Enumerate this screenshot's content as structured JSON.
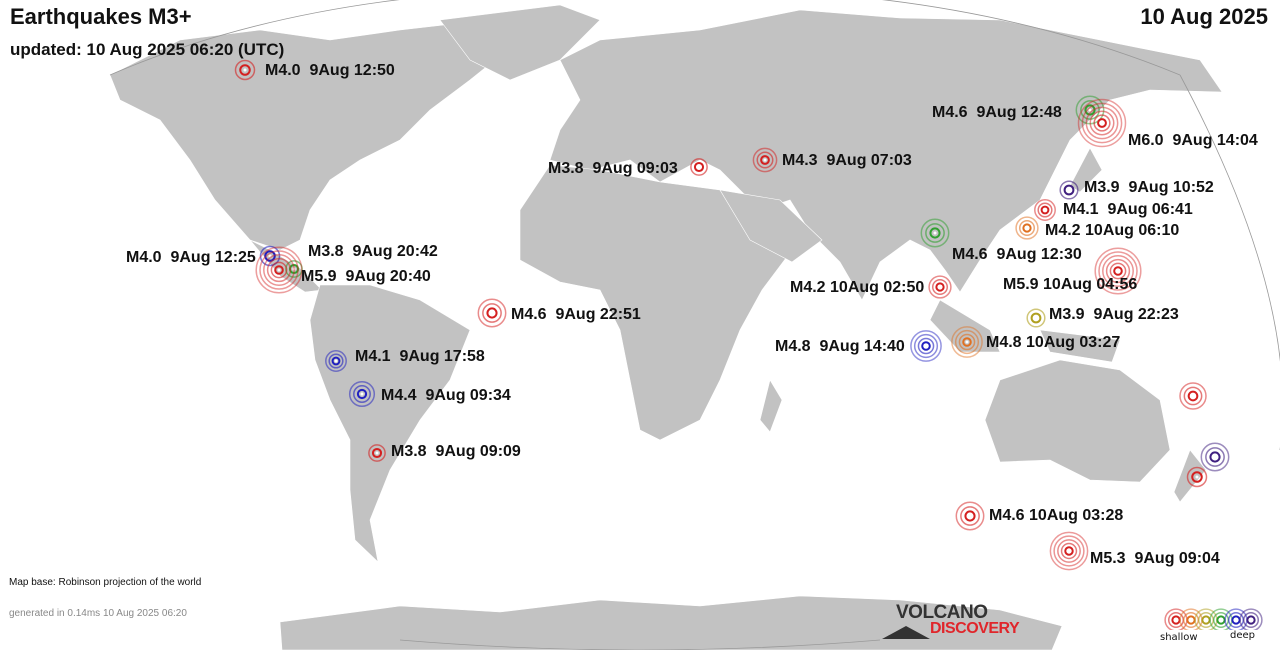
{
  "header": {
    "title": "Earthquakes M3+",
    "updated": "updated: 10 Aug 2025 06:20 (UTC)",
    "date": "10 Aug 2025"
  },
  "footer": {
    "map_base": "Map base: Robinson projection of the world",
    "generated": "generated in 0.14ms 10 Aug 2025 06:20"
  },
  "logo": {
    "line1": "VOLCANO",
    "line2": "DISCOVERY"
  },
  "legend": {
    "shallow_label": "shallow",
    "deep_label": "deep",
    "depth_colors": [
      "#d42020",
      "#e07020",
      "#b0a020",
      "#30a030",
      "#2020c0",
      "#402080"
    ]
  },
  "colors": {
    "land": "#c2c2c2",
    "ocean": "#ffffff",
    "graticule": "#999999"
  },
  "quakes": [
    {
      "label": "M4.0  9Aug 12:50",
      "magnitude": 4.0,
      "depth_color": "#d42020"
    },
    {
      "label": "M4.6  9Aug 12:48",
      "magnitude": 4.6,
      "depth_color": "#30a030"
    },
    {
      "label": "M6.0  9Aug 14:04",
      "magnitude": 6.0,
      "depth_color": "#d42020"
    },
    {
      "label": "M3.8  9Aug 09:03",
      "magnitude": 3.8,
      "depth_color": "#d42020"
    },
    {
      "label": "M4.3  9Aug 07:03",
      "magnitude": 4.3,
      "depth_color": "#d42020"
    },
    {
      "label": "M3.9  9Aug 10:52",
      "magnitude": 3.9,
      "depth_color": "#402080"
    },
    {
      "label": "M4.1  9Aug 06:41",
      "magnitude": 4.1,
      "depth_color": "#d42020"
    },
    {
      "label": "M4.2 10Aug 06:10",
      "magnitude": 4.2,
      "depth_color": "#e07020"
    },
    {
      "label": "M4.6  9Aug 12:30",
      "magnitude": 4.6,
      "depth_color": "#30a030"
    },
    {
      "label": "M4.0  9Aug 12:25",
      "magnitude": 4.0,
      "depth_color": "#2020c0"
    },
    {
      "label": "M3.8  9Aug 20:42",
      "magnitude": 3.8,
      "depth_color": "#30a030"
    },
    {
      "label": "M5.9  9Aug 20:40",
      "magnitude": 5.9,
      "depth_color": "#d42020"
    },
    {
      "label": "M5.9 10Aug 04:56",
      "magnitude": 5.9,
      "depth_color": "#d42020"
    },
    {
      "label": "M4.2 10Aug 02:50",
      "magnitude": 4.2,
      "depth_color": "#d42020"
    },
    {
      "label": "M4.6  9Aug 22:51",
      "magnitude": 4.6,
      "depth_color": "#d42020"
    },
    {
      "label": "M3.9  9Aug 22:23",
      "magnitude": 3.9,
      "depth_color": "#b0a020"
    },
    {
      "label": "M4.1  9Aug 17:58",
      "magnitude": 4.1,
      "depth_color": "#2020c0"
    },
    {
      "label": "M4.8  9Aug 14:40",
      "magnitude": 4.8,
      "depth_color": "#2020c0"
    },
    {
      "label": "M4.8 10Aug 03:27",
      "magnitude": 4.8,
      "depth_color": "#e07020"
    },
    {
      "label": "M4.4  9Aug 09:34",
      "magnitude": 4.4,
      "depth_color": "#2020c0"
    },
    {
      "label": "",
      "magnitude": 4.5,
      "depth_color": "#d42020"
    },
    {
      "label": "M3.8  9Aug 09:09",
      "magnitude": 3.8,
      "depth_color": "#d42020"
    },
    {
      "label": "",
      "magnitude": 4.6,
      "depth_color": "#402080"
    },
    {
      "label": "",
      "magnitude": 4.0,
      "depth_color": "#d42020"
    },
    {
      "label": "M4.6 10Aug 03:28",
      "magnitude": 4.6,
      "depth_color": "#d42020"
    },
    {
      "label": "M5.3  9Aug 09:04",
      "magnitude": 5.3,
      "depth_color": "#d42020"
    }
  ]
}
